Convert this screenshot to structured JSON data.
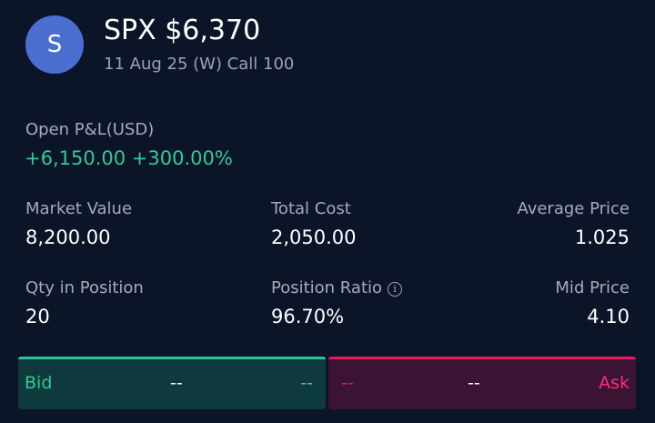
{
  "header": {
    "avatar_letter": "S",
    "title": "SPX $6,370",
    "subtitle": "11 Aug 25 (W) Call 100"
  },
  "pnl": {
    "label": "Open P&L(USD)",
    "value": "+6,150.00 +300.00%"
  },
  "stats": {
    "market_value": {
      "label": "Market Value",
      "value": "8,200.00"
    },
    "total_cost": {
      "label": "Total Cost",
      "value": "2,050.00"
    },
    "average_price": {
      "label": "Average Price",
      "value": "1.025"
    },
    "qty_in_position": {
      "label": "Qty in Position",
      "value": "20"
    },
    "position_ratio": {
      "label": "Position Ratio",
      "value": "96.70%",
      "info_icon": "ⓘ"
    },
    "mid_price": {
      "label": "Mid Price",
      "value": "4.10"
    }
  },
  "quote": {
    "bid_label": "Bid",
    "bid_size": "--",
    "bid_price": "--",
    "ask_price": "--",
    "ask_size": "--",
    "ask_label": "Ask"
  },
  "colors": {
    "background": "#0c1427",
    "positive": "#2ecc96",
    "negative": "#e6195f",
    "avatar": "#4b6fd1"
  },
  "icons": {
    "info": "info-icon"
  }
}
